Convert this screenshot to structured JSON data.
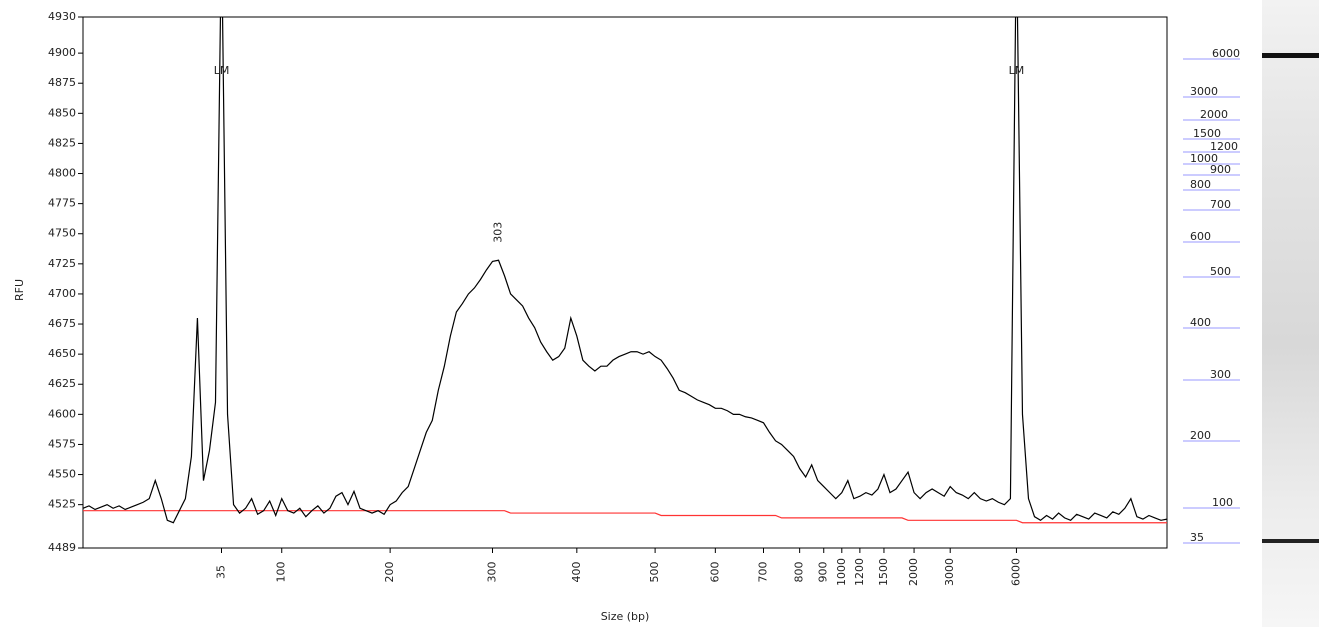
{
  "chart_data": {
    "type": "line",
    "y_label": "RFU",
    "x_label": "Size (bp)",
    "ylim": [
      4489,
      4930
    ],
    "yticks": [
      4489,
      4525,
      4550,
      4575,
      4600,
      4625,
      4650,
      4675,
      4700,
      4725,
      4750,
      4775,
      4800,
      4825,
      4850,
      4875,
      4900,
      4930
    ],
    "categories": [
      null,
      null,
      null,
      null,
      null,
      null,
      null,
      null,
      null,
      null,
      null,
      null,
      null,
      null,
      null,
      null,
      null,
      null,
      null,
      null,
      null,
      null,
      null,
      "35",
      null,
      null,
      null,
      null,
      null,
      null,
      null,
      null,
      null,
      "100",
      null,
      null,
      null,
      null,
      null,
      null,
      null,
      null,
      null,
      null,
      null,
      null,
      null,
      null,
      null,
      null,
      null,
      "200",
      null,
      null,
      null,
      null,
      null,
      null,
      null,
      null,
      null,
      null,
      null,
      null,
      null,
      null,
      null,
      null,
      "300",
      null,
      null,
      null,
      null,
      null,
      null,
      null,
      null,
      null,
      null,
      null,
      null,
      null,
      "400",
      null,
      null,
      null,
      null,
      null,
      null,
      null,
      null,
      null,
      null,
      null,
      null,
      "500",
      null,
      null,
      null,
      null,
      null,
      null,
      null,
      null,
      null,
      "600",
      null,
      null,
      null,
      null,
      null,
      null,
      null,
      "700",
      null,
      null,
      null,
      null,
      null,
      "800",
      null,
      null,
      null,
      "900",
      null,
      null,
      "1000",
      null,
      null,
      "1200",
      null,
      null,
      null,
      "1500",
      null,
      null,
      null,
      null,
      "2000",
      null,
      null,
      null,
      null,
      null,
      "3000",
      null,
      null,
      null,
      null,
      null,
      null,
      null,
      null,
      null,
      null,
      "6000",
      null,
      null,
      null,
      null,
      null,
      null,
      null,
      null,
      null,
      null,
      null,
      null,
      null,
      null,
      null,
      null,
      null,
      null,
      null,
      null,
      null,
      null,
      null,
      null,
      null
    ],
    "series": [
      {
        "color": "#000000",
        "values": [
          4522,
          4524,
          4521,
          4523,
          4525,
          4522,
          4524,
          4521,
          4523,
          4525,
          4527,
          4530,
          4545,
          4530,
          4512,
          4510,
          4520,
          4530,
          4565,
          4680,
          4545,
          4570,
          4610,
          5000,
          4600,
          4525,
          4518,
          4522,
          4530,
          4517,
          4520,
          4528,
          4516,
          4530,
          4520,
          4518,
          4522,
          4515,
          4520,
          4524,
          4518,
          4522,
          4532,
          4535,
          4525,
          4536,
          4522,
          4520,
          4518,
          4520,
          4517,
          4525,
          4528,
          4535,
          4540,
          4555,
          4570,
          4585,
          4595,
          4620,
          4640,
          4665,
          4685,
          4692,
          4700,
          4705,
          4712,
          4720,
          4727,
          4728,
          4715,
          4700,
          4695,
          4690,
          4680,
          4672,
          4660,
          4652,
          4645,
          4648,
          4655,
          4680,
          4665,
          4645,
          4640,
          4636,
          4640,
          4640,
          4645,
          4648,
          4650,
          4652,
          4652,
          4650,
          4652,
          4648,
          4645,
          4638,
          4630,
          4620,
          4618,
          4615,
          4612,
          4610,
          4608,
          4605,
          4605,
          4603,
          4600,
          4600,
          4598,
          4597,
          4595,
          4593,
          4585,
          4578,
          4575,
          4570,
          4565,
          4555,
          4548,
          4558,
          4545,
          4540,
          4535,
          4530,
          4535,
          4545,
          4530,
          4532,
          4535,
          4533,
          4538,
          4550,
          4535,
          4538,
          4545,
          4552,
          4535,
          4530,
          4535,
          4538,
          4535,
          4532,
          4540,
          4535,
          4533,
          4530,
          4535,
          4530,
          4528,
          4530,
          4527,
          4525,
          4530,
          5000,
          4600,
          4530,
          4515,
          4512,
          4516,
          4513,
          4518,
          4514,
          4512,
          4517,
          4515,
          4513,
          4518,
          4516,
          4514,
          4519,
          4517,
          4522,
          4530,
          4515,
          4513,
          4516,
          4514,
          4512,
          4513
        ]
      },
      {
        "color": "#ff3333",
        "values": [
          4520,
          4520,
          4520,
          4520,
          4520,
          4520,
          4520,
          4520,
          4520,
          4520,
          4520,
          4520,
          4520,
          4520,
          4520,
          4520,
          4520,
          4520,
          4520,
          4520,
          4520,
          4520,
          4520,
          4520,
          4520,
          4520,
          4520,
          4520,
          4520,
          4520,
          4520,
          4520,
          4520,
          4520,
          4520,
          4520,
          4520,
          4520,
          4520,
          4520,
          4520,
          4520,
          4520,
          4520,
          4520,
          4520,
          4520,
          4520,
          4520,
          4520,
          4520,
          4520,
          4520,
          4520,
          4520,
          4520,
          4520,
          4520,
          4520,
          4520,
          4520,
          4520,
          4520,
          4520,
          4520,
          4520,
          4520,
          4520,
          4520,
          4520,
          4520,
          4518,
          4518,
          4518,
          4518,
          4518,
          4518,
          4518,
          4518,
          4518,
          4518,
          4518,
          4518,
          4518,
          4518,
          4518,
          4518,
          4518,
          4518,
          4518,
          4518,
          4518,
          4518,
          4518,
          4518,
          4518,
          4516,
          4516,
          4516,
          4516,
          4516,
          4516,
          4516,
          4516,
          4516,
          4516,
          4516,
          4516,
          4516,
          4516,
          4516,
          4516,
          4516,
          4516,
          4516,
          4516,
          4514,
          4514,
          4514,
          4514,
          4514,
          4514,
          4514,
          4514,
          4514,
          4514,
          4514,
          4514,
          4514,
          4514,
          4514,
          4514,
          4514,
          4514,
          4514,
          4514,
          4514,
          4512,
          4512,
          4512,
          4512,
          4512,
          4512,
          4512,
          4512,
          4512,
          4512,
          4512,
          4512,
          4512,
          4512,
          4512,
          4512,
          4512,
          4512,
          4512,
          4510,
          4510,
          4510,
          4510,
          4510,
          4510,
          4510,
          4510,
          4510,
          4510,
          4510,
          4510,
          4510,
          4510,
          4510,
          4510,
          4510,
          4510,
          4510,
          4510,
          4510,
          4510,
          4510,
          4510,
          4510
        ]
      }
    ],
    "annotations": [
      {
        "text": "LM",
        "index": 23,
        "color": "#ff0000"
      },
      {
        "text": "LM",
        "index": 155,
        "color": "#ff0000"
      },
      {
        "text": "303",
        "index": 69,
        "color": "#3333ff",
        "rotated": true
      }
    ],
    "ladder": {
      "color": "#3333ff",
      "labels": [
        6000,
        3000,
        2000,
        1500,
        1200,
        1000,
        900,
        800,
        700,
        600,
        500,
        400,
        300,
        200,
        100,
        35
      ]
    }
  }
}
